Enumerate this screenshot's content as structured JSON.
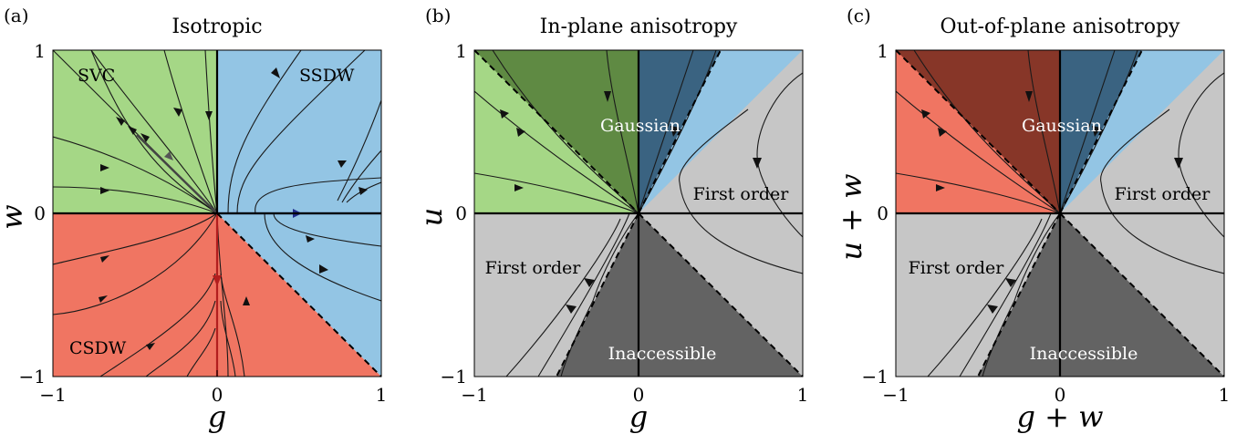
{
  "colors": {
    "green": "#a5d786",
    "blue": "#93c5e4",
    "red": "#f07562",
    "dark_green": "#5f8a43",
    "dark_blue": "#3a6381",
    "dark_red": "#873628",
    "light_gray": "#c6c6c6",
    "dark_gray": "#636363",
    "flow_line": "#1a1a1a",
    "arrow_blue": "#1f2c8c",
    "arrow_red": "#b21e1e"
  },
  "tick_labels": {
    "neg": "−1",
    "zero": "0",
    "pos": "1"
  },
  "panels": [
    {
      "letter": "(a)",
      "title": "Isotropic",
      "xlabel": "g",
      "ylabel": "w",
      "regions": {
        "top_left": "SVC",
        "top_right": "SSDW",
        "bottom_left": "CSDW"
      }
    },
    {
      "letter": "(b)",
      "title": "In-plane anisotropy",
      "xlabel": "g",
      "ylabel": "u",
      "regions": {
        "gaussian": "Gaussian",
        "first_order_right": "First order",
        "first_order_left": "First order",
        "inaccessible": "Inaccessible"
      }
    },
    {
      "letter": "(c)",
      "title": "Out-of-plane anisotropy",
      "xlabel": "g + w",
      "ylabel": "u + w",
      "regions": {
        "gaussian": "Gaussian",
        "first_order_right": "First order",
        "first_order_left": "First order",
        "inaccessible": "Inaccessible"
      }
    }
  ]
}
